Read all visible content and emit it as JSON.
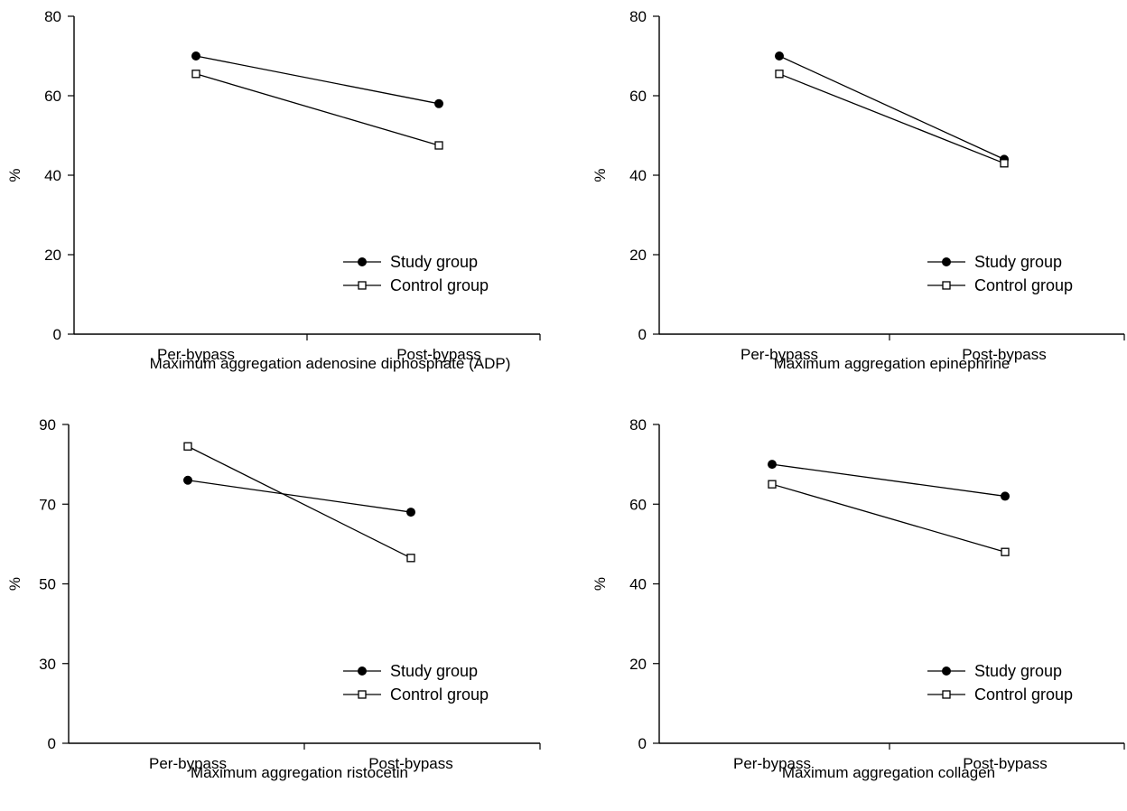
{
  "chart_data": [
    {
      "type": "line",
      "categories": [
        "Per-bypass",
        "Post-bypass"
      ],
      "series": [
        {
          "name": "Study group",
          "values": [
            70,
            58
          ],
          "marker": "filled-circle"
        },
        {
          "name": "Control group",
          "values": [
            65.5,
            47.5
          ],
          "marker": "open-square"
        }
      ],
      "xlabel": "Maximum aggregation adenosine diphosphate (ADP)",
      "ylabel": "%",
      "ylim": [
        0,
        80
      ],
      "yticks": [
        0,
        20,
        40,
        60,
        80
      ],
      "grid": false,
      "legend_position": "bottom-right"
    },
    {
      "type": "line",
      "categories": [
        "Per-bypass",
        "Post-bypass"
      ],
      "series": [
        {
          "name": "Study group",
          "values": [
            70,
            44
          ],
          "marker": "filled-circle"
        },
        {
          "name": "Control group",
          "values": [
            65.5,
            43
          ],
          "marker": "open-square"
        }
      ],
      "xlabel": "Maximum aggregation epinephrine",
      "ylabel": "%",
      "ylim": [
        0,
        80
      ],
      "yticks": [
        0,
        20,
        40,
        60,
        80
      ],
      "grid": false,
      "legend_position": "bottom-right"
    },
    {
      "type": "line",
      "categories": [
        "Per-bypass",
        "Post-bypass"
      ],
      "series": [
        {
          "name": "Study group",
          "values": [
            76,
            68
          ],
          "marker": "filled-circle"
        },
        {
          "name": "Control group",
          "values": [
            84.5,
            56.5
          ],
          "marker": "open-square"
        }
      ],
      "xlabel": "Maximum aggregation ristocetin",
      "ylabel": "%",
      "ylim": [
        0,
        90
      ],
      "yticks": [
        0,
        30,
        50,
        70,
        90
      ],
      "grid": false,
      "legend_position": "bottom-right"
    },
    {
      "type": "line",
      "categories": [
        "Per-bypass",
        "Post-bypass"
      ],
      "series": [
        {
          "name": "Study group",
          "values": [
            70,
            62
          ],
          "marker": "filled-circle"
        },
        {
          "name": "Control group",
          "values": [
            65,
            48
          ],
          "marker": "open-square"
        }
      ],
      "xlabel": "Maximum aggregation collagen",
      "ylabel": "%",
      "ylim": [
        0,
        80
      ],
      "yticks": [
        0,
        20,
        40,
        60,
        80
      ],
      "grid": false,
      "legend_position": "bottom-right"
    }
  ]
}
